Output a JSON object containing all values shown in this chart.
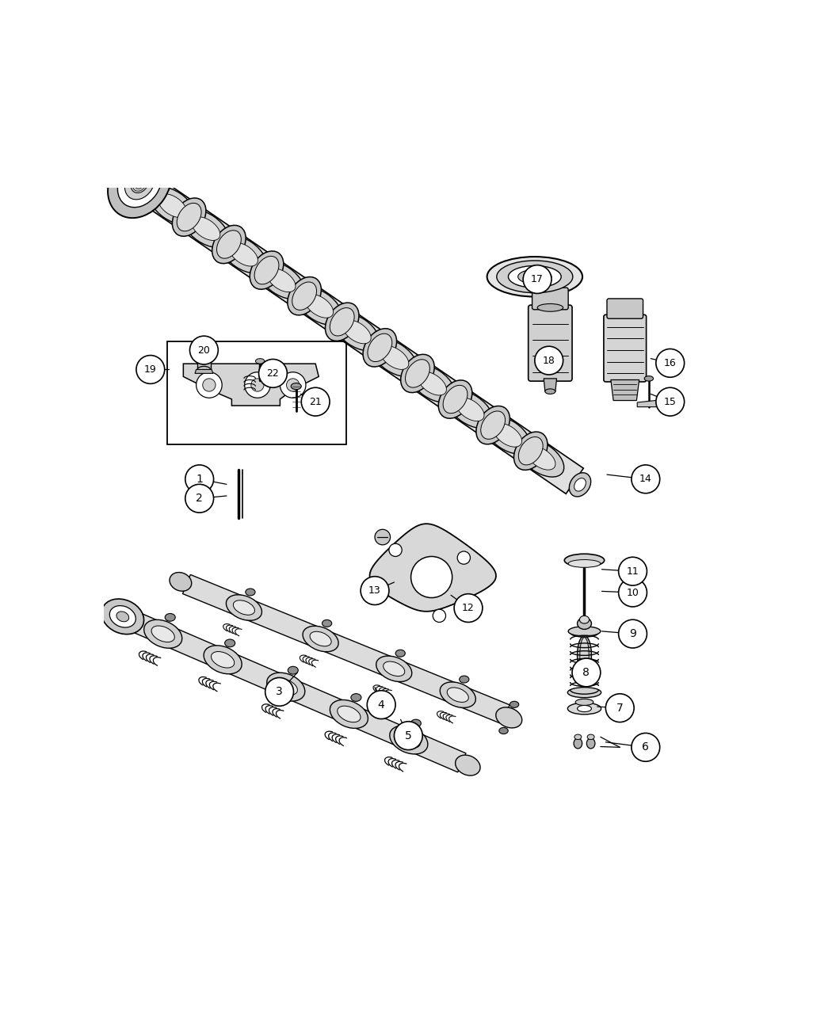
{
  "background_color": "#ffffff",
  "figsize": [
    10.5,
    12.75
  ],
  "dpi": 100,
  "callouts": {
    "1": [
      0.148,
      0.548,
      0.19,
      0.54
    ],
    "2": [
      0.148,
      0.518,
      0.19,
      0.522
    ],
    "3": [
      0.272,
      0.218,
      0.3,
      0.248
    ],
    "4": [
      0.43,
      0.198,
      0.42,
      0.225
    ],
    "5": [
      0.472,
      0.15,
      0.46,
      0.175
    ],
    "6": [
      0.84,
      0.132,
      0.778,
      0.14
    ],
    "7": [
      0.8,
      0.193,
      0.765,
      0.195
    ],
    "8": [
      0.748,
      0.248,
      0.748,
      0.258
    ],
    "9": [
      0.82,
      0.308,
      0.772,
      0.312
    ],
    "10": [
      0.82,
      0.372,
      0.772,
      0.374
    ],
    "11": [
      0.82,
      0.405,
      0.772,
      0.408
    ],
    "12": [
      0.565,
      0.348,
      0.538,
      0.368
    ],
    "13": [
      0.42,
      0.375,
      0.45,
      0.388
    ],
    "14": [
      0.84,
      0.548,
      0.78,
      0.555
    ],
    "15": [
      0.878,
      0.668,
      0.848,
      0.68
    ],
    "16": [
      0.878,
      0.728,
      0.848,
      0.735
    ],
    "17": [
      0.672,
      0.858,
      0.68,
      0.862
    ],
    "18": [
      0.69,
      0.732,
      0.7,
      0.74
    ],
    "19": [
      0.072,
      0.718,
      0.1,
      0.718
    ],
    "20": [
      0.155,
      0.748,
      0.168,
      0.758
    ],
    "21": [
      0.328,
      0.668,
      0.305,
      0.68
    ],
    "22": [
      0.262,
      0.712,
      0.248,
      0.718
    ]
  }
}
